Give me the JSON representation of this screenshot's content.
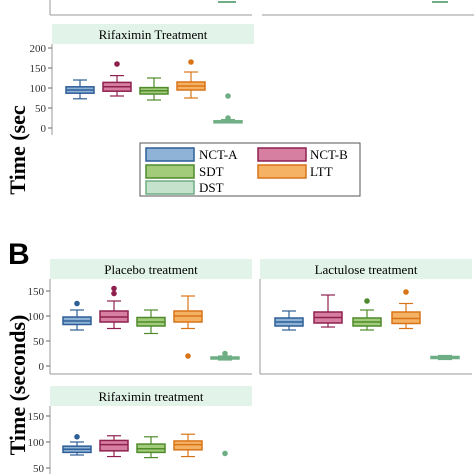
{
  "colors": {
    "NCT-A": {
      "fill": "#8fb3d6",
      "stroke": "#2e5f97"
    },
    "NCT-B": {
      "fill": "#d67fa1",
      "stroke": "#8e2050"
    },
    "SDT": {
      "fill": "#a3cc7a",
      "stroke": "#4f8a2c"
    },
    "LTT": {
      "fill": "#f6b264",
      "stroke": "#d87418"
    },
    "DST": {
      "fill": "#c4e2cc",
      "stroke": "#6fae84"
    },
    "strip": "#e2f3ea"
  },
  "panel_letters": {
    "b": "B"
  },
  "ylabels": {
    "a": "Time (sec",
    "b": "Time (seconds)"
  },
  "legend": {
    "labels": [
      "NCT-A",
      "NCT-B",
      "SDT",
      "LTT",
      "DST"
    ]
  },
  "chart_data": [
    {
      "type": "box",
      "panel": "A",
      "title": "Rifaximin Treatment",
      "ylabel": "Time (sec",
      "categories": [
        "NCT-A",
        "NCT-B",
        "SDT",
        "LTT",
        "DST"
      ],
      "yticks": [
        0,
        50,
        100,
        150,
        200
      ],
      "ylim": [
        -10,
        205
      ],
      "boxes": [
        {
          "name": "NCT-A",
          "min": 73,
          "q1": 87,
          "median": 95,
          "q3": 103,
          "max": 120,
          "outliers": []
        },
        {
          "name": "NCT-B",
          "min": 80,
          "q1": 92,
          "median": 103,
          "q3": 114,
          "max": 131,
          "outliers": [
            160
          ]
        },
        {
          "name": "SDT",
          "min": 70,
          "q1": 85,
          "median": 93,
          "q3": 101,
          "max": 125,
          "outliers": []
        },
        {
          "name": "LTT",
          "min": 75,
          "q1": 95,
          "median": 105,
          "q3": 115,
          "max": 140,
          "outliers": [
            165
          ]
        },
        {
          "name": "DST",
          "min": 13,
          "q1": 16,
          "median": 17,
          "q3": 18,
          "max": 21,
          "outliers": [
            80,
            25
          ]
        }
      ]
    },
    {
      "type": "box",
      "panel": "B",
      "title": "Placebo treatment",
      "ylabel": "Time (seconds)",
      "categories": [
        "NCT-A",
        "NCT-B",
        "SDT",
        "LTT",
        "DST"
      ],
      "yticks": [
        0,
        50,
        100,
        150
      ],
      "ylim": [
        -10,
        175
      ],
      "boxes": [
        {
          "name": "NCT-A",
          "min": 72,
          "q1": 83,
          "median": 90,
          "q3": 98,
          "max": 112,
          "outliers": [
            125
          ]
        },
        {
          "name": "NCT-B",
          "min": 75,
          "q1": 88,
          "median": 98,
          "q3": 110,
          "max": 130,
          "outliers": [
            145,
            155
          ]
        },
        {
          "name": "SDT",
          "min": 65,
          "q1": 80,
          "median": 88,
          "q3": 97,
          "max": 112,
          "outliers": []
        },
        {
          "name": "LTT",
          "min": 75,
          "q1": 88,
          "median": 100,
          "q3": 110,
          "max": 140,
          "outliers": [
            20
          ]
        },
        {
          "name": "DST",
          "min": 12,
          "q1": 14,
          "median": 16,
          "q3": 18,
          "max": 20,
          "outliers": [
            25
          ]
        }
      ]
    },
    {
      "type": "box",
      "panel": "B",
      "title": "Lactulose treatment",
      "ylabel": "Time (seconds)",
      "categories": [
        "NCT-A",
        "NCT-B",
        "SDT",
        "LTT",
        "DST"
      ],
      "yticks": [
        0,
        50,
        100,
        150
      ],
      "ylim": [
        -10,
        175
      ],
      "boxes": [
        {
          "name": "NCT-A",
          "min": 72,
          "q1": 80,
          "median": 88,
          "q3": 96,
          "max": 110,
          "outliers": []
        },
        {
          "name": "NCT-B",
          "min": 78,
          "q1": 86,
          "median": 97,
          "q3": 108,
          "max": 142,
          "outliers": []
        },
        {
          "name": "SDT",
          "min": 72,
          "q1": 80,
          "median": 88,
          "q3": 96,
          "max": 112,
          "outliers": [
            130
          ]
        },
        {
          "name": "LTT",
          "min": 75,
          "q1": 85,
          "median": 95,
          "q3": 108,
          "max": 125,
          "outliers": [
            148
          ]
        },
        {
          "name": "DST",
          "min": 13,
          "q1": 15,
          "median": 17,
          "q3": 19,
          "max": 21,
          "outliers": []
        }
      ]
    },
    {
      "type": "box",
      "panel": "B",
      "title": "Rifaximin treatment",
      "ylabel": "Time (seconds)",
      "categories": [
        "NCT-A",
        "NCT-B",
        "SDT",
        "LTT",
        "DST"
      ],
      "yticks": [
        50,
        100,
        150
      ],
      "ylim": [
        45,
        175
      ],
      "boxes": [
        {
          "name": "NCT-A",
          "min": 75,
          "q1": 80,
          "median": 86,
          "q3": 92,
          "max": 100,
          "outliers": [
            110
          ]
        },
        {
          "name": "NCT-B",
          "min": 72,
          "q1": 83,
          "median": 95,
          "q3": 103,
          "max": 112,
          "outliers": []
        },
        {
          "name": "SDT",
          "min": 70,
          "q1": 80,
          "median": 87,
          "q3": 96,
          "max": 110,
          "outliers": []
        },
        {
          "name": "LTT",
          "min": 72,
          "q1": 85,
          "median": 95,
          "q3": 102,
          "max": 115,
          "outliers": []
        },
        {
          "name": "DST",
          "min": null,
          "q1": null,
          "median": null,
          "q3": null,
          "max": null,
          "outliers": [
            78
          ]
        }
      ]
    }
  ]
}
